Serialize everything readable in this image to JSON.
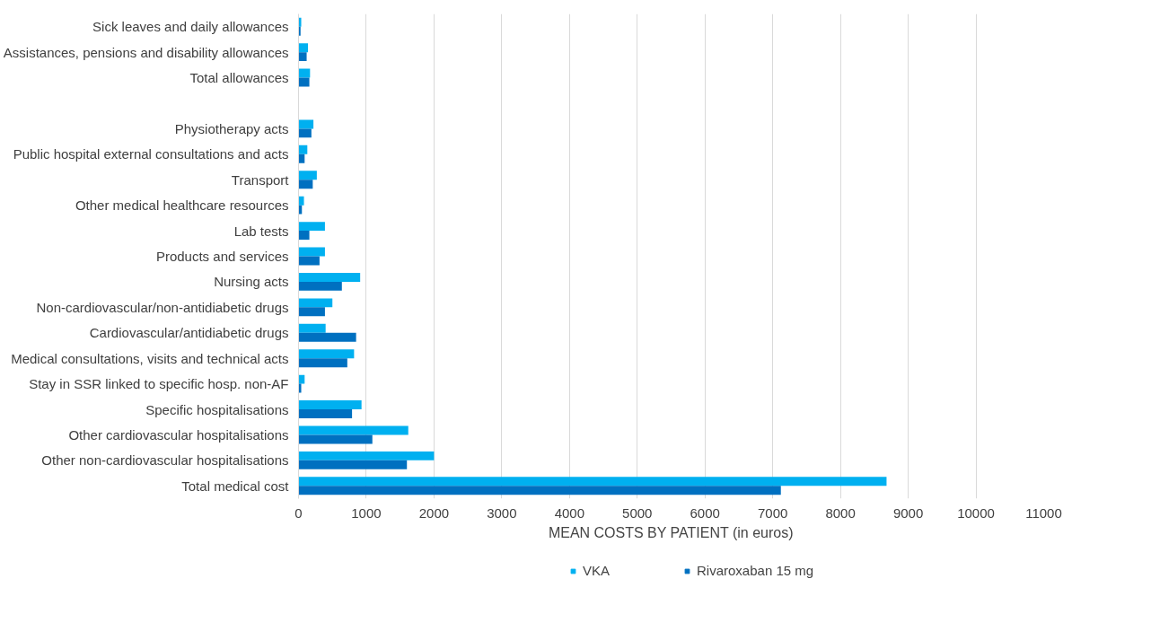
{
  "chart_data": {
    "type": "bar",
    "orientation": "horizontal",
    "xlabel": "MEAN COSTS BY PATIENT (in euros)",
    "categories": [
      "Sick leaves and daily allowances",
      "Assistances, pensions and disability allowances",
      "Total allowances",
      null,
      "Physiotherapy acts",
      "Public hospital external consultations and acts",
      "Transport",
      "Other medical healthcare resources",
      "Lab tests",
      "Products and services",
      "Nursing acts",
      "Non-cardiovascular/non-antidiabetic drugs",
      "Cardiovascular/antidiabetic drugs",
      "Medical consultations, visits and technical acts",
      "Stay in SSR linked to specific hosp. non-AF",
      "Specific hospitalisations",
      "Other cardiovascular hospitalisations",
      "Other non-cardiovascular hospitalisations",
      "Total medical cost"
    ],
    "series": [
      {
        "name": "VKA",
        "color": "#00b0f0",
        "values": [
          40,
          140,
          170,
          null,
          220,
          130,
          270,
          80,
          390,
          390,
          910,
          500,
          400,
          820,
          90,
          930,
          1620,
          2000,
          8680
        ]
      },
      {
        "name": "Rivaroxaban 15 mg",
        "color": "#0070c0",
        "values": [
          30,
          120,
          160,
          null,
          190,
          90,
          210,
          50,
          160,
          310,
          640,
          390,
          850,
          720,
          40,
          790,
          1090,
          1600,
          7120
        ]
      }
    ],
    "xlim": [
      0,
      11000
    ],
    "xticks": [
      0,
      1000,
      2000,
      3000,
      4000,
      5000,
      6000,
      7000,
      8000,
      9000,
      10000,
      11000
    ],
    "grid": "x",
    "legend": "bottom left"
  }
}
